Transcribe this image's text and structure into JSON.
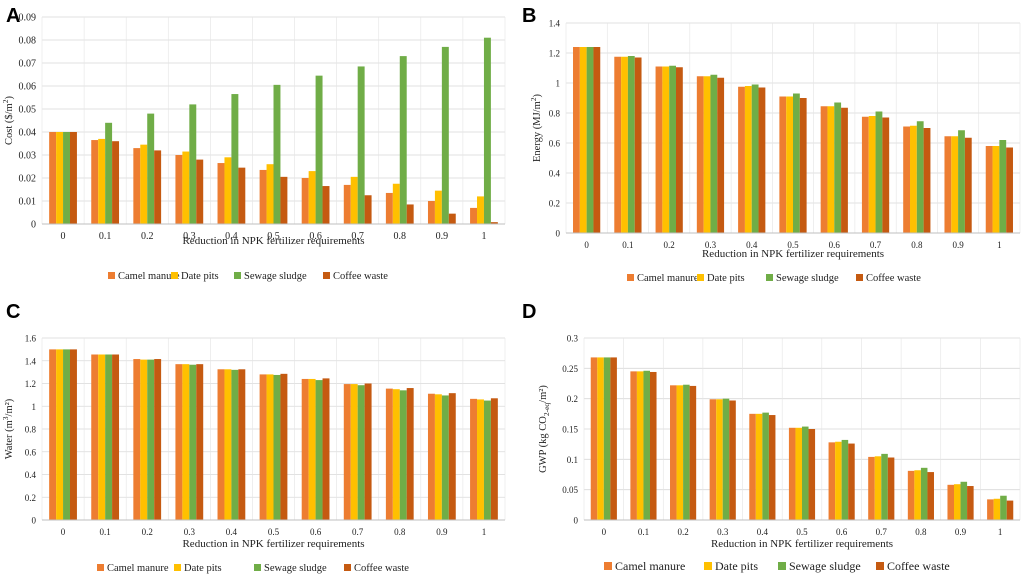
{
  "series_colors": [
    "#ED7D31",
    "#FFC000",
    "#70AD47",
    "#C55A11"
  ],
  "chart_data": [
    {
      "panel": "A",
      "type": "bar",
      "title": "",
      "xlabel": "Reduction in NPK fertilizer requirements",
      "ylabel_main": "Cost ($/m",
      "ylabel_sup": "2",
      "ylabel_end": ")",
      "ylim": [
        0,
        0.09
      ],
      "yticks": [
        "0",
        "0.01",
        "0.02",
        "0.03",
        "0.04",
        "0.05",
        "0.06",
        "0.07",
        "0.08",
        "0.09"
      ],
      "grid": true,
      "categories": [
        "0",
        "0.1",
        "0.2",
        "0.3",
        "0.4",
        "0.5",
        "0.6",
        "0.7",
        "0.8",
        "0.9",
        "1"
      ],
      "series": [
        {
          "name": "Camel manure",
          "values": [
            0.04,
            0.0365,
            0.033,
            0.03,
            0.0265,
            0.0235,
            0.02,
            0.017,
            0.0135,
            0.01,
            0.007
          ]
        },
        {
          "name": "Date pits",
          "values": [
            0.04,
            0.037,
            0.0345,
            0.0315,
            0.029,
            0.026,
            0.023,
            0.0205,
            0.0175,
            0.0145,
            0.012
          ]
        },
        {
          "name": "Sewage sludge",
          "values": [
            0.04,
            0.044,
            0.048,
            0.052,
            0.0565,
            0.0605,
            0.0645,
            0.0685,
            0.073,
            0.077,
            0.081
          ]
        },
        {
          "name": "Coffee waste",
          "values": [
            0.04,
            0.036,
            0.032,
            0.028,
            0.0245,
            0.0205,
            0.0165,
            0.0125,
            0.0085,
            0.0045,
            0.0008
          ]
        }
      ]
    },
    {
      "panel": "B",
      "type": "bar",
      "title": "",
      "xlabel": "Reduction in NPK fertilizer requirements",
      "ylabel_main": "Energy (MJ/m",
      "ylabel_sup": "2",
      "ylabel_end": ")",
      "ylim": [
        0,
        1.4
      ],
      "yticks": [
        "0",
        "0.2",
        "0.4",
        "0.6",
        "0.8",
        "1",
        "1.2",
        "1.4"
      ],
      "grid": true,
      "categories": [
        "0",
        "0.1",
        "0.2",
        "0.3",
        "0.4",
        "0.5",
        "0.6",
        "0.7",
        "0.8",
        "0.9",
        "1"
      ],
      "series": [
        {
          "name": "Camel manure",
          "values": [
            1.24,
            1.175,
            1.11,
            1.045,
            0.975,
            0.91,
            0.845,
            0.775,
            0.71,
            0.645,
            0.58
          ]
        },
        {
          "name": "Date pits",
          "values": [
            1.24,
            1.175,
            1.11,
            1.045,
            0.98,
            0.91,
            0.845,
            0.78,
            0.715,
            0.645,
            0.58
          ]
        },
        {
          "name": "Sewage sludge",
          "values": [
            1.24,
            1.18,
            1.115,
            1.055,
            0.99,
            0.93,
            0.87,
            0.81,
            0.745,
            0.685,
            0.62
          ]
        },
        {
          "name": "Coffee waste",
          "values": [
            1.24,
            1.17,
            1.105,
            1.035,
            0.97,
            0.9,
            0.835,
            0.77,
            0.7,
            0.635,
            0.57
          ]
        }
      ]
    },
    {
      "panel": "C",
      "type": "bar",
      "title": "",
      "xlabel": "Reduction in NPK fertilizer requirements",
      "ylabel_main": "Water (m",
      "ylabel_sup": "3",
      "ylabel_end": "/m²)",
      "ylim": [
        0,
        1.6
      ],
      "yticks": [
        "0",
        "0.2",
        "0.4",
        "0.6",
        "0.8",
        "1",
        "1.2",
        "1.4",
        "1.6"
      ],
      "grid": true,
      "categories": [
        "0",
        "0.1",
        "0.2",
        "0.3",
        "0.4",
        "0.5",
        "0.6",
        "0.7",
        "0.8",
        "0.9",
        "1"
      ],
      "series": [
        {
          "name": "Camel manure",
          "values": [
            1.5,
            1.455,
            1.415,
            1.37,
            1.325,
            1.28,
            1.24,
            1.195,
            1.155,
            1.11,
            1.065
          ]
        },
        {
          "name": "Date pits",
          "values": [
            1.5,
            1.455,
            1.41,
            1.37,
            1.325,
            1.28,
            1.24,
            1.195,
            1.15,
            1.105,
            1.06
          ]
        },
        {
          "name": "Sewage sludge",
          "values": [
            1.5,
            1.455,
            1.41,
            1.365,
            1.32,
            1.275,
            1.23,
            1.185,
            1.14,
            1.095,
            1.05
          ]
        },
        {
          "name": "Coffee waste",
          "values": [
            1.5,
            1.455,
            1.415,
            1.37,
            1.325,
            1.285,
            1.245,
            1.2,
            1.16,
            1.115,
            1.07
          ]
        }
      ]
    },
    {
      "panel": "D",
      "type": "bar",
      "title": "",
      "xlabel": "Reduction in NPK fertilizer requirements",
      "ylabel_main": "GWP (kg CO",
      "ylabel_sub": "2-eq",
      "ylabel_end": "/m²)",
      "ylim": [
        0,
        0.3
      ],
      "yticks": [
        "0",
        "0.05",
        "0.1",
        "0.15",
        "0.2",
        "0.25",
        "0.3"
      ],
      "grid": true,
      "categories": [
        "0",
        "0.1",
        "0.2",
        "0.3",
        "0.4",
        "0.5",
        "0.6",
        "0.7",
        "0.8",
        "0.9",
        "1"
      ],
      "series": [
        {
          "name": "Camel manure",
          "values": [
            0.268,
            0.245,
            0.222,
            0.199,
            0.175,
            0.152,
            0.128,
            0.104,
            0.081,
            0.058,
            0.034
          ]
        },
        {
          "name": "Date pits",
          "values": [
            0.268,
            0.245,
            0.222,
            0.199,
            0.175,
            0.152,
            0.129,
            0.105,
            0.082,
            0.059,
            0.035
          ]
        },
        {
          "name": "Sewage sludge",
          "values": [
            0.268,
            0.246,
            0.223,
            0.2,
            0.177,
            0.154,
            0.132,
            0.109,
            0.086,
            0.063,
            0.04
          ]
        },
        {
          "name": "Coffee waste",
          "values": [
            0.268,
            0.244,
            0.221,
            0.197,
            0.173,
            0.15,
            0.126,
            0.103,
            0.079,
            0.056,
            0.032
          ]
        }
      ]
    }
  ]
}
